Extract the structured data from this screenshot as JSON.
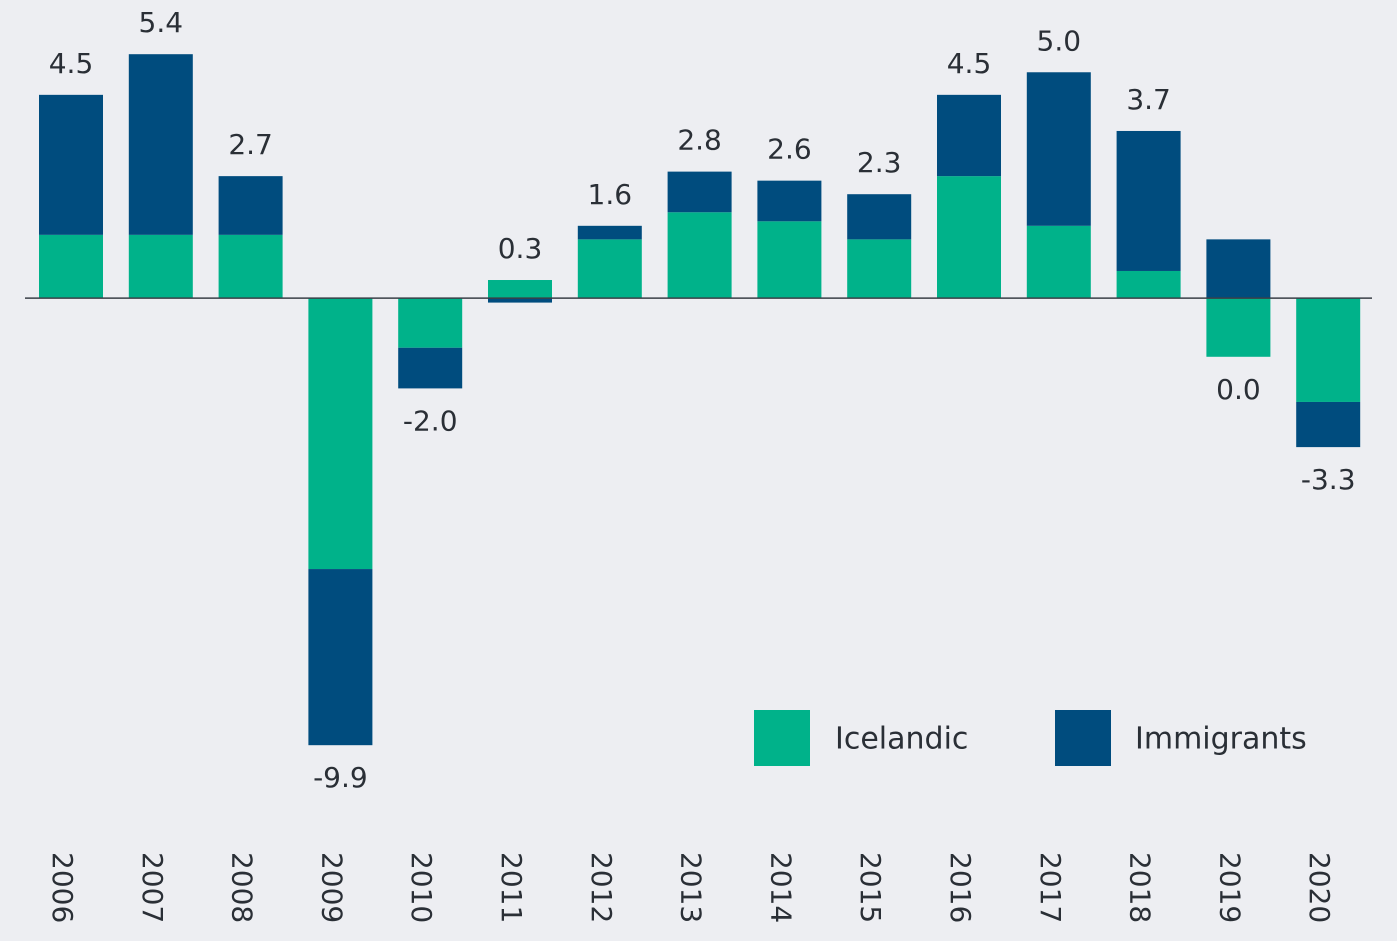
{
  "chart_data": {
    "type": "bar",
    "stacked": true,
    "categories": [
      "2006",
      "2007",
      "2008",
      "2009",
      "2010",
      "2011",
      "2012",
      "2013",
      "2014",
      "2015",
      "2016",
      "2017",
      "2018",
      "2019",
      "2020"
    ],
    "series": [
      {
        "name": "Icelandic",
        "color": "#00b28a",
        "values": [
          1.4,
          1.4,
          1.4,
          -6.0,
          -1.1,
          0.4,
          1.3,
          1.9,
          1.7,
          1.3,
          2.7,
          1.6,
          0.6,
          -1.3,
          -2.3
        ]
      },
      {
        "name": "Immigrants",
        "color": "#004c7e",
        "values": [
          3.1,
          4.0,
          1.3,
          -3.9,
          -0.9,
          -0.1,
          0.3,
          0.9,
          0.9,
          1.0,
          1.8,
          3.4,
          3.1,
          1.3,
          -1.0
        ]
      }
    ],
    "totals": [
      4.5,
      5.4,
      2.7,
      -9.9,
      -2.0,
      0.3,
      1.6,
      2.8,
      2.6,
      2.3,
      4.5,
      5.0,
      3.7,
      0.0,
      -3.3
    ],
    "value_labels": [
      "4.5",
      "5.4",
      "2.7",
      "-9.9",
      "-2.0",
      "0.3",
      "1.6",
      "2.8",
      "2.6",
      "2.3",
      "4.5",
      "5.0",
      "3.7",
      "0.0",
      "-3.3"
    ],
    "ylim": [
      -11.8,
      6.6
    ],
    "legend": "bottom-right"
  }
}
